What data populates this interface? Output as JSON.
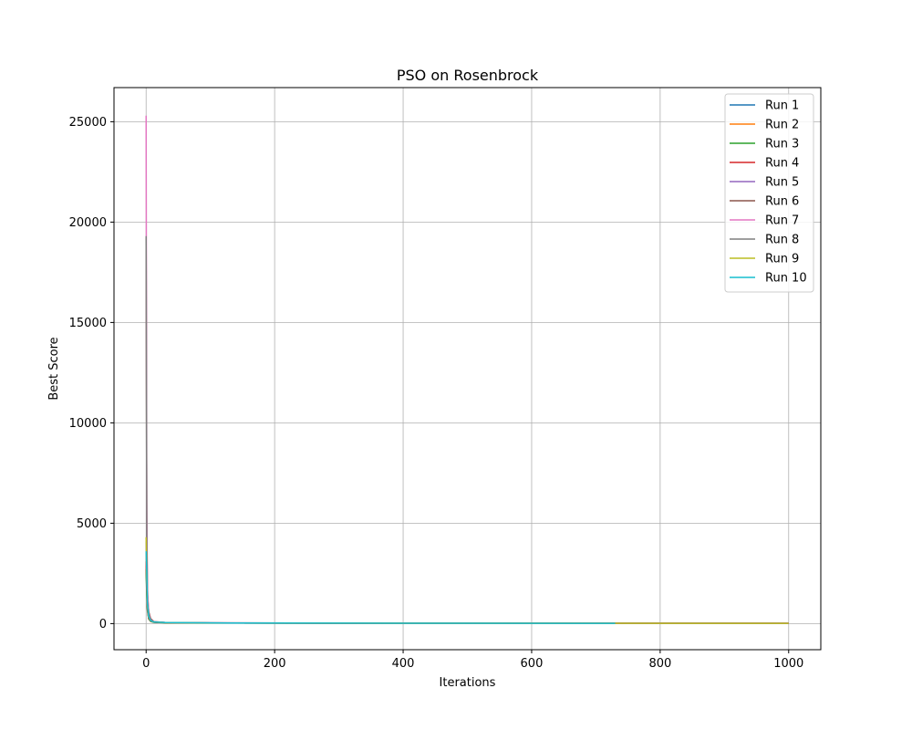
{
  "chart_data": {
    "type": "line",
    "title": "PSO on Rosenbrock",
    "xlabel": "Iterations",
    "ylabel": "Best Score",
    "xlim": [
      -50,
      1050
    ],
    "ylim": [
      -1300,
      26700
    ],
    "xticks": [
      0,
      200,
      400,
      600,
      800,
      1000
    ],
    "yticks": [
      0,
      5000,
      10000,
      15000,
      20000,
      25000
    ],
    "grid": true,
    "legend_position": "top-right",
    "series": [
      {
        "name": "Run 1",
        "color": "#1f77b4",
        "end": 1000,
        "points": [
          [
            0,
            2900
          ],
          [
            1,
            1600
          ],
          [
            2,
            700
          ],
          [
            4,
            250
          ],
          [
            7,
            120
          ],
          [
            12,
            70
          ],
          [
            30,
            45
          ],
          [
            100,
            30
          ],
          [
            400,
            18
          ],
          [
            1000,
            10
          ]
        ]
      },
      {
        "name": "Run 2",
        "color": "#ff7f0e",
        "end": 1000,
        "points": [
          [
            0,
            3500
          ],
          [
            1,
            1900
          ],
          [
            2,
            800
          ],
          [
            4,
            300
          ],
          [
            7,
            130
          ],
          [
            12,
            75
          ],
          [
            30,
            48
          ],
          [
            100,
            32
          ],
          [
            400,
            20
          ],
          [
            1000,
            12
          ]
        ]
      },
      {
        "name": "Run 3",
        "color": "#2ca02c",
        "end": 1000,
        "points": [
          [
            0,
            2700
          ],
          [
            1,
            1400
          ],
          [
            2,
            650
          ],
          [
            4,
            230
          ],
          [
            7,
            110
          ],
          [
            12,
            65
          ],
          [
            30,
            42
          ],
          [
            100,
            29
          ],
          [
            400,
            17
          ],
          [
            1000,
            9
          ]
        ]
      },
      {
        "name": "Run 4",
        "color": "#d62728",
        "end": 1000,
        "points": [
          [
            0,
            3100
          ],
          [
            1,
            1700
          ],
          [
            2,
            750
          ],
          [
            4,
            270
          ],
          [
            7,
            125
          ],
          [
            12,
            72
          ],
          [
            30,
            46
          ],
          [
            100,
            31
          ],
          [
            400,
            19
          ],
          [
            1000,
            11
          ]
        ]
      },
      {
        "name": "Run 5",
        "color": "#9467bd",
        "end": 1000,
        "points": [
          [
            0,
            4100
          ],
          [
            1,
            2100
          ],
          [
            2,
            900
          ],
          [
            4,
            320
          ],
          [
            7,
            140
          ],
          [
            12,
            80
          ],
          [
            30,
            50
          ],
          [
            100,
            33
          ],
          [
            400,
            21
          ],
          [
            1000,
            12
          ]
        ]
      },
      {
        "name": "Run 6",
        "color": "#8c564b",
        "end": 1000,
        "points": [
          [
            0,
            19200
          ],
          [
            1,
            5000
          ],
          [
            2,
            1500
          ],
          [
            4,
            600
          ],
          [
            7,
            250
          ],
          [
            12,
            100
          ],
          [
            30,
            55
          ],
          [
            100,
            35
          ],
          [
            400,
            22
          ],
          [
            1000,
            13
          ]
        ]
      },
      {
        "name": "Run 7",
        "color": "#e377c2",
        "end": 1000,
        "points": [
          [
            0,
            25300
          ],
          [
            1,
            6000
          ],
          [
            2,
            1800
          ],
          [
            4,
            500
          ],
          [
            7,
            200
          ],
          [
            12,
            90
          ],
          [
            30,
            52
          ],
          [
            100,
            34
          ],
          [
            400,
            21
          ],
          [
            1000,
            12
          ]
        ]
      },
      {
        "name": "Run 8",
        "color": "#7f7f7f",
        "end": 1000,
        "points": [
          [
            0,
            19300
          ],
          [
            1,
            4500
          ],
          [
            2,
            1200
          ],
          [
            4,
            450
          ],
          [
            7,
            180
          ],
          [
            12,
            85
          ],
          [
            30,
            50
          ],
          [
            100,
            33
          ],
          [
            400,
            20
          ],
          [
            1000,
            12
          ]
        ]
      },
      {
        "name": "Run 9",
        "color": "#bcbd22",
        "end": 1000,
        "points": [
          [
            0,
            4300
          ],
          [
            1,
            2200
          ],
          [
            2,
            900
          ],
          [
            4,
            330
          ],
          [
            7,
            140
          ],
          [
            12,
            78
          ],
          [
            30,
            49
          ],
          [
            100,
            32
          ],
          [
            400,
            20
          ],
          [
            1000,
            11
          ]
        ]
      },
      {
        "name": "Run 10",
        "color": "#17becf",
        "end": 730,
        "points": [
          [
            0,
            3600
          ],
          [
            1,
            2600
          ],
          [
            2,
            1000
          ],
          [
            4,
            350
          ],
          [
            7,
            150
          ],
          [
            12,
            80
          ],
          [
            30,
            50
          ],
          [
            100,
            33
          ],
          [
            400,
            20
          ],
          [
            730,
            14
          ]
        ]
      }
    ]
  }
}
